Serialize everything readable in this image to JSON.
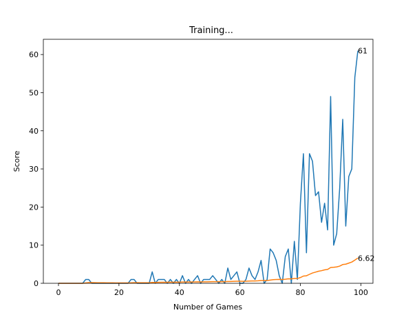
{
  "chart_data": {
    "type": "line",
    "title": "Training...",
    "xlabel": "Number of Games",
    "ylabel": "Score",
    "xlim": [
      -5,
      104
    ],
    "ylim": [
      0,
      64
    ],
    "xticks": [
      0,
      20,
      40,
      60,
      80,
      100
    ],
    "yticks": [
      0,
      10,
      20,
      30,
      40,
      50,
      60
    ],
    "grid": false,
    "x": [
      0,
      1,
      2,
      3,
      4,
      5,
      6,
      7,
      8,
      9,
      10,
      11,
      12,
      13,
      14,
      15,
      16,
      17,
      18,
      19,
      20,
      21,
      22,
      23,
      24,
      25,
      26,
      27,
      28,
      29,
      30,
      31,
      32,
      33,
      34,
      35,
      36,
      37,
      38,
      39,
      40,
      41,
      42,
      43,
      44,
      45,
      46,
      47,
      48,
      49,
      50,
      51,
      52,
      53,
      54,
      55,
      56,
      57,
      58,
      59,
      60,
      61,
      62,
      63,
      64,
      65,
      66,
      67,
      68,
      69,
      70,
      71,
      72,
      73,
      74,
      75,
      76,
      77,
      78,
      79,
      80,
      81,
      82,
      83,
      84,
      85,
      86,
      87,
      88,
      89,
      90,
      91,
      92,
      93,
      94,
      95,
      96,
      97,
      98,
      99
    ],
    "series": [
      {
        "name": "",
        "color": "#1f77b4",
        "values": [
          0,
          0,
          0,
          0,
          0,
          0,
          0,
          0,
          0,
          1,
          1,
          0,
          0,
          0,
          0,
          0,
          0,
          0,
          0,
          0,
          0,
          0,
          0,
          0,
          1,
          1,
          0,
          0,
          0,
          0,
          0,
          3,
          0,
          1,
          1,
          1,
          0,
          1,
          0,
          1,
          0,
          2,
          0,
          1,
          0,
          1,
          2,
          0,
          1,
          1,
          1,
          2,
          1,
          0,
          1,
          0,
          4,
          1,
          2,
          3,
          0,
          0,
          1,
          4,
          2,
          1,
          3,
          6,
          0,
          1,
          9,
          8,
          6,
          2,
          0,
          7,
          9,
          0,
          11,
          1,
          21,
          34,
          8,
          34,
          32,
          23,
          24,
          16,
          21,
          14,
          49,
          10,
          13,
          25,
          43,
          15,
          28,
          30,
          54,
          61
        ]
      },
      {
        "name": "",
        "color": "#ff7f0e",
        "values": [
          0,
          0,
          0,
          0,
          0,
          0,
          0,
          0,
          0,
          0.1,
          0.18,
          0.17,
          0.15,
          0.14,
          0.13,
          0.13,
          0.12,
          0.11,
          0.11,
          0.1,
          0.1,
          0.1,
          0.09,
          0.09,
          0.12,
          0.15,
          0.15,
          0.14,
          0.14,
          0.13,
          0.13,
          0.22,
          0.22,
          0.24,
          0.26,
          0.28,
          0.27,
          0.29,
          0.29,
          0.3,
          0.29,
          0.33,
          0.33,
          0.34,
          0.33,
          0.35,
          0.38,
          0.37,
          0.38,
          0.39,
          0.41,
          0.43,
          0.43,
          0.42,
          0.43,
          0.42,
          0.48,
          0.48,
          0.51,
          0.55,
          0.54,
          0.53,
          0.54,
          0.59,
          0.61,
          0.62,
          0.65,
          0.73,
          0.72,
          0.72,
          0.84,
          0.94,
          1.0,
          1.01,
          1.0,
          1.07,
          1.17,
          1.15,
          1.27,
          1.26,
          1.51,
          1.9,
          1.97,
          2.35,
          2.7,
          2.93,
          3.17,
          3.31,
          3.52,
          3.63,
          4.14,
          4.2,
          4.3,
          4.51,
          4.92,
          5.02,
          5.29,
          5.57,
          6.08,
          6.62
        ]
      }
    ],
    "end_labels": [
      "61",
      "6.62"
    ]
  }
}
